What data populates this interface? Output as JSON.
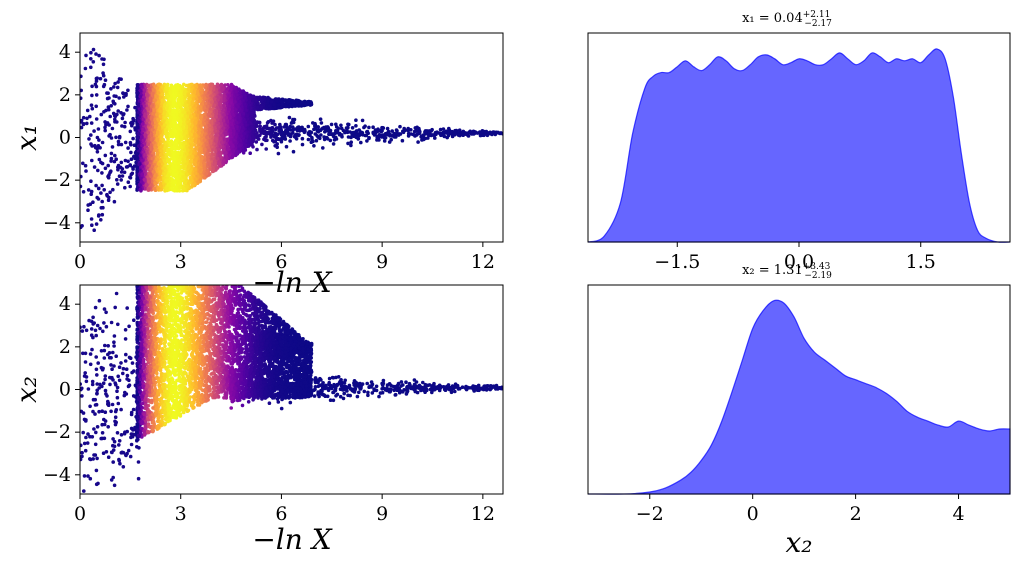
{
  "chart_data": [
    {
      "type": "scatter",
      "panel": "top-left",
      "xlabel": "−ln X",
      "ylabel": "x₁",
      "xlim": [
        0,
        12.6
      ],
      "ylim": [
        -4.9,
        4.9
      ],
      "xticks": [
        "0",
        "3",
        "6",
        "9",
        "12"
      ],
      "yticks": [
        "−4",
        "−2",
        "0",
        "2",
        "4"
      ],
      "colormap": "plasma",
      "description_values": {
        "dense_band_x": [
          1.7,
          5.3
        ],
        "peak_density_x": 2.8,
        "tail_end_x": 12.5,
        "tail_y": 0.15
      }
    },
    {
      "type": "area",
      "panel": "top-right",
      "title": "x₁ = 0.04",
      "title_sup": "+2.11",
      "title_sub": "−2.17",
      "xlim": [
        -2.6,
        2.6
      ],
      "xticks": [
        "−1.5",
        "0.0",
        "1.5"
      ],
      "color": "#0000ff",
      "x": [
        -2.6,
        -2.4,
        -2.2,
        -2.05,
        -1.9,
        -1.8,
        -1.7,
        -1.6,
        -1.5,
        -1.4,
        -1.3,
        -1.2,
        -1.1,
        -1.0,
        -0.9,
        -0.8,
        -0.7,
        -0.6,
        -0.5,
        -0.4,
        -0.3,
        -0.2,
        -0.1,
        0.0,
        0.1,
        0.2,
        0.3,
        0.4,
        0.5,
        0.6,
        0.7,
        0.8,
        0.9,
        1.0,
        1.1,
        1.2,
        1.3,
        1.4,
        1.5,
        1.6,
        1.7,
        1.8,
        1.9,
        2.0,
        2.1,
        2.2,
        2.3,
        2.45,
        2.6
      ],
      "y": [
        0.0,
        0.03,
        0.2,
        0.55,
        0.78,
        0.84,
        0.86,
        0.86,
        0.89,
        0.92,
        0.89,
        0.87,
        0.9,
        0.94,
        0.92,
        0.88,
        0.87,
        0.9,
        0.94,
        0.95,
        0.93,
        0.9,
        0.91,
        0.93,
        0.92,
        0.9,
        0.9,
        0.93,
        0.96,
        0.93,
        0.9,
        0.92,
        0.96,
        0.94,
        0.91,
        0.93,
        0.92,
        0.93,
        0.91,
        0.95,
        0.98,
        0.93,
        0.74,
        0.45,
        0.2,
        0.06,
        0.02,
        0.0,
        0.0
      ]
    },
    {
      "type": "scatter",
      "panel": "bottom-left",
      "xlabel": "−ln X",
      "ylabel": "x₂",
      "xlim": [
        0,
        12.6
      ],
      "ylim": [
        -4.9,
        4.9
      ],
      "xticks": [
        "0",
        "3",
        "6",
        "9",
        "12"
      ],
      "yticks": [
        "−4",
        "−2",
        "0",
        "2",
        "4"
      ],
      "colormap": "plasma",
      "description_values": {
        "dense_band_x": [
          1.7,
          6.9
        ],
        "peak_density_x": 2.8,
        "tail_end_x": 12.5,
        "tail_y": 0.05
      }
    },
    {
      "type": "area",
      "panel": "bottom-right",
      "title": "x₂ = 1.31",
      "title_sup": "+3.43",
      "title_sub": "−2.19",
      "xlabel": "x₂",
      "xlim": [
        -3.2,
        5.0
      ],
      "xticks": [
        "−2",
        "0",
        "2",
        "4"
      ],
      "color": "#0000ff",
      "x": [
        -3.2,
        -2.5,
        -2.0,
        -1.7,
        -1.4,
        -1.2,
        -1.0,
        -0.8,
        -0.6,
        -0.4,
        -0.2,
        0.0,
        0.2,
        0.4,
        0.6,
        0.8,
        1.0,
        1.2,
        1.4,
        1.6,
        1.8,
        2.0,
        2.2,
        2.4,
        2.6,
        2.8,
        3.0,
        3.2,
        3.4,
        3.6,
        3.8,
        4.0,
        4.2,
        4.4,
        4.6,
        4.8,
        5.0
      ],
      "y": [
        0.0,
        0.0,
        0.01,
        0.03,
        0.07,
        0.11,
        0.17,
        0.25,
        0.37,
        0.52,
        0.68,
        0.84,
        0.93,
        0.98,
        0.97,
        0.9,
        0.79,
        0.72,
        0.68,
        0.64,
        0.6,
        0.58,
        0.56,
        0.54,
        0.51,
        0.47,
        0.42,
        0.39,
        0.37,
        0.35,
        0.34,
        0.37,
        0.35,
        0.33,
        0.32,
        0.33,
        0.33
      ]
    }
  ]
}
